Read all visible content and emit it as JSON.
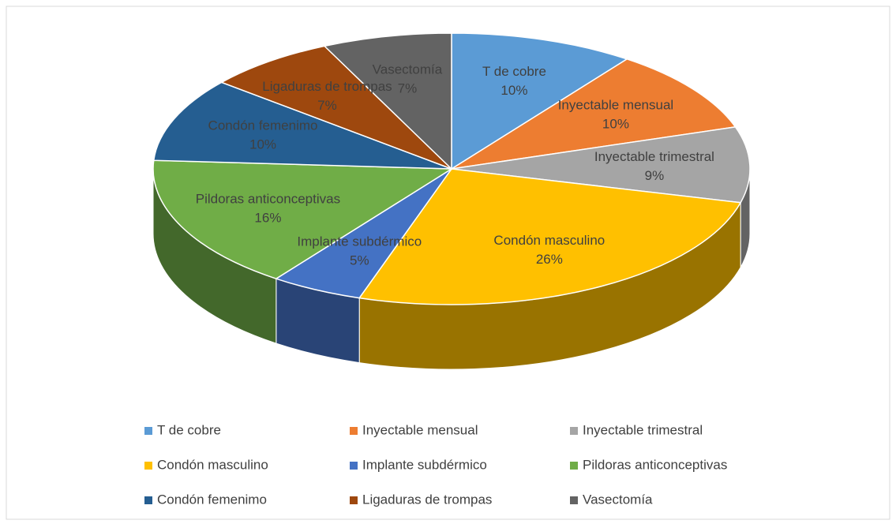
{
  "chart_data": {
    "type": "pie3d",
    "categories": [
      "T de cobre",
      "Inyectable mensual",
      "Inyectable trimestral",
      "Condón masculino",
      "Implante subdérmico",
      "Pildoras anticonceptivas",
      "Condón femenimo",
      "Ligaduras de trompas",
      "Vasectomía"
    ],
    "values": [
      10,
      10,
      9,
      26,
      5,
      16,
      10,
      7,
      7
    ],
    "value_labels": [
      "10%",
      "10%",
      "9%",
      "26%",
      "5%",
      "16%",
      "10%",
      "7%",
      "7%"
    ],
    "colors": [
      "#5b9bd5",
      "#ed7d31",
      "#a5a5a5",
      "#ffc000",
      "#4472c4",
      "#70ad47",
      "#255e91",
      "#9e480e",
      "#636363"
    ],
    "legend": "bottom"
  }
}
